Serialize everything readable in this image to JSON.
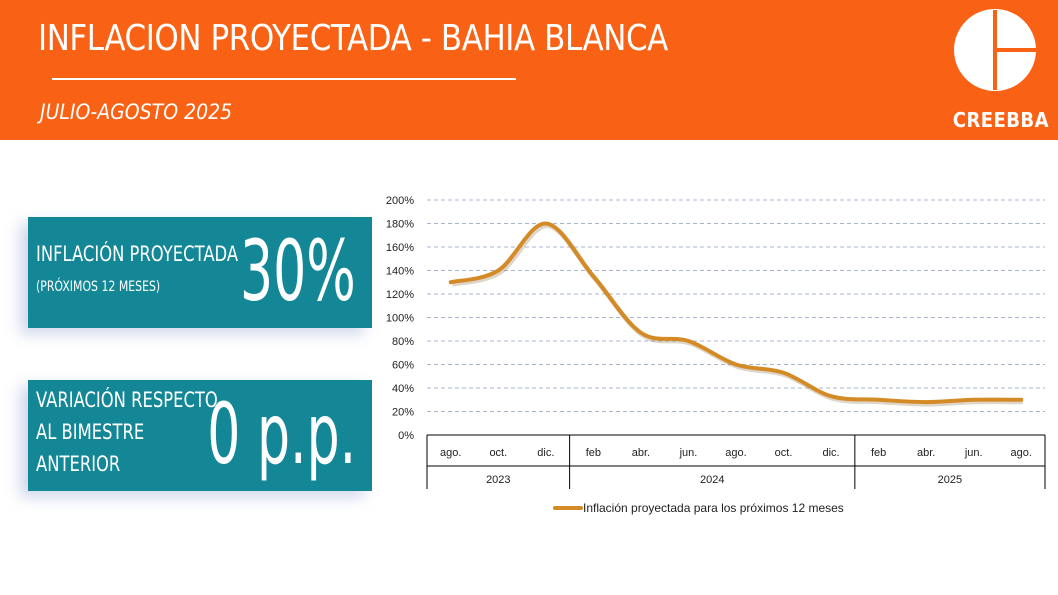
{
  "header": {
    "title": "INFLACION PROYECTADA - BAHIA BLANCA",
    "subtitle": "JULIO-AGOSTO 2025",
    "logo_text": "CREEBBA"
  },
  "colors": {
    "orange": "#f96115",
    "teal": "#138796",
    "line": "#d48a25"
  },
  "cards": {
    "projected": {
      "label": "INFLACIÓN PROYECTADA",
      "sublabel": "(PRÓXIMOS 12 MESES)",
      "value": "30%"
    },
    "variation": {
      "label_lines": [
        "VARIACIÓN RESPECTO",
        "AL BIMESTRE",
        "ANTERIOR"
      ],
      "value": "0 p.p."
    }
  },
  "chart_data": {
    "type": "line",
    "title": "",
    "xlabel": "",
    "ylabel": "",
    "ylim": [
      0,
      200
    ],
    "yticks": [
      "0%",
      "20%",
      "40%",
      "60%",
      "80%",
      "100%",
      "120%",
      "140%",
      "160%",
      "180%",
      "200%"
    ],
    "categories": [
      "ago.",
      "oct.",
      "dic.",
      "feb",
      "abr.",
      "jun.",
      "ago.",
      "oct.",
      "dic.",
      "feb",
      "abr.",
      "jun.",
      "ago."
    ],
    "year_groups": [
      {
        "label": "2023",
        "count": 3
      },
      {
        "label": "2024",
        "count": 6
      },
      {
        "label": "2025",
        "count": 4
      }
    ],
    "series": [
      {
        "name": "Inflación proyectada para los próximos 12 meses",
        "values": [
          130,
          140,
          180,
          135,
          87,
          80,
          60,
          53,
          33,
          30,
          28,
          30,
          30
        ]
      }
    ],
    "grid": true,
    "legend": "bottom"
  }
}
